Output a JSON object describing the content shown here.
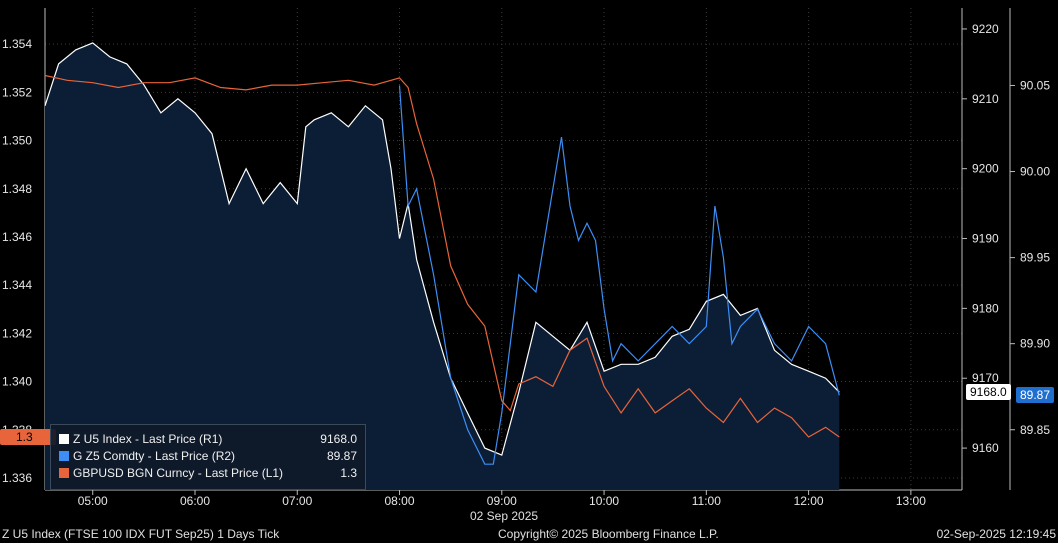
{
  "chart_data": {
    "type": "line",
    "x_tick_labels": [
      "05:00",
      "06:00",
      "07:00",
      "08:00",
      "09:00",
      "10:00",
      "11:00",
      "12:00",
      "13:00"
    ],
    "x_range": [
      "04:32",
      "13:30"
    ],
    "date_label": "02 Sep 2025",
    "left_axis": {
      "ticks": [
        "1.354",
        "1.352",
        "1.350",
        "1.348",
        "1.346",
        "1.344",
        "1.342",
        "1.340",
        "1.338",
        "1.336"
      ],
      "range": [
        1.3355,
        1.3555
      ]
    },
    "right_axis_1": {
      "ticks": [
        "9220",
        "9210",
        "9200",
        "9190",
        "9180",
        "9170",
        "9160"
      ],
      "range": [
        9154,
        9223
      ]
    },
    "right_axis_2": {
      "ticks": [
        "90.05",
        "90.00",
        "89.95",
        "89.90",
        "89.85"
      ],
      "range": [
        89.815,
        90.095
      ]
    },
    "grid": "dotted",
    "legend_position": "bottom-left",
    "series": [
      {
        "name": "Z U5 Index - Last Price (R1)",
        "axis": "R1",
        "color": "#ffffff",
        "fill": "#0b1e36",
        "last_value": "9168.0",
        "x": [
          "04:32",
          "04:40",
          "04:50",
          "05:00",
          "05:10",
          "05:20",
          "05:30",
          "05:40",
          "05:50",
          "06:00",
          "06:10",
          "06:20",
          "06:30",
          "06:40",
          "06:50",
          "07:00",
          "07:05",
          "07:10",
          "07:20",
          "07:30",
          "07:40",
          "07:50",
          "07:55",
          "08:00",
          "08:05",
          "08:10",
          "08:20",
          "08:30",
          "08:40",
          "08:50",
          "09:00",
          "09:10",
          "09:20",
          "09:30",
          "09:40",
          "09:50",
          "10:00",
          "10:10",
          "10:20",
          "10:30",
          "10:40",
          "10:50",
          "11:00",
          "11:10",
          "11:20",
          "11:30",
          "11:40",
          "11:50",
          "12:00",
          "12:10",
          "12:18"
        ],
        "values": [
          9209,
          9215,
          9217,
          9218,
          9216,
          9215,
          9212,
          9208,
          9210,
          9208,
          9205,
          9195,
          9200,
          9195,
          9198,
          9195,
          9206,
          9207,
          9208,
          9206,
          9209,
          9207,
          9200,
          9190,
          9195,
          9187,
          9178,
          9170,
          9165,
          9160,
          9159,
          9168,
          9178,
          9176,
          9174,
          9178,
          9171,
          9172,
          9172,
          9173,
          9176,
          9177,
          9181,
          9182,
          9179,
          9180,
          9174,
          9172,
          9171,
          9170,
          9168
        ]
      },
      {
        "name": "G Z5 Comdty - Last Price (R2)",
        "axis": "R2",
        "color": "#3d8ef5",
        "last_value": "89.87",
        "x": [
          "08:00",
          "08:05",
          "08:10",
          "08:20",
          "08:30",
          "08:40",
          "08:50",
          "08:55",
          "09:00",
          "09:10",
          "09:20",
          "09:30",
          "09:35",
          "09:40",
          "09:45",
          "09:50",
          "09:55",
          "10:00",
          "10:05",
          "10:10",
          "10:20",
          "10:30",
          "10:40",
          "10:50",
          "11:00",
          "11:05",
          "11:10",
          "11:15",
          "11:20",
          "11:30",
          "11:40",
          "11:50",
          "12:00",
          "12:10",
          "12:18"
        ],
        "values": [
          90.05,
          89.98,
          89.99,
          89.94,
          89.88,
          89.85,
          89.83,
          89.83,
          89.86,
          89.94,
          89.93,
          89.99,
          90.02,
          89.98,
          89.96,
          89.97,
          89.96,
          89.92,
          89.89,
          89.9,
          89.89,
          89.9,
          89.91,
          89.9,
          89.91,
          89.98,
          89.95,
          89.9,
          89.91,
          89.92,
          89.9,
          89.89,
          89.91,
          89.9,
          89.87
        ]
      },
      {
        "name": "GBPUSD BGN Curncy - Last Price (L1)",
        "axis": "L1",
        "color": "#e8643a",
        "last_value": "1.3",
        "x": [
          "04:32",
          "04:45",
          "05:00",
          "05:15",
          "05:30",
          "05:45",
          "06:00",
          "06:15",
          "06:30",
          "06:45",
          "07:00",
          "07:15",
          "07:30",
          "07:45",
          "08:00",
          "08:05",
          "08:10",
          "08:20",
          "08:30",
          "08:40",
          "08:50",
          "09:00",
          "09:05",
          "09:10",
          "09:20",
          "09:30",
          "09:40",
          "09:50",
          "10:00",
          "10:10",
          "10:20",
          "10:30",
          "10:40",
          "10:50",
          "11:00",
          "11:10",
          "11:20",
          "11:30",
          "11:40",
          "11:50",
          "12:00",
          "12:10",
          "12:18"
        ],
        "values": [
          1.3527,
          1.3525,
          1.3524,
          1.3522,
          1.3524,
          1.3524,
          1.3526,
          1.3522,
          1.3521,
          1.3523,
          1.3523,
          1.3524,
          1.3525,
          1.3523,
          1.3526,
          1.3522,
          1.3507,
          1.3484,
          1.3448,
          1.3432,
          1.3423,
          1.3392,
          1.3388,
          1.3399,
          1.3402,
          1.3398,
          1.3413,
          1.3418,
          1.3398,
          1.3387,
          1.3397,
          1.3387,
          1.3392,
          1.3397,
          1.3389,
          1.3383,
          1.3393,
          1.3383,
          1.3389,
          1.3385,
          1.3377,
          1.3381,
          1.3377
        ]
      }
    ]
  },
  "tags": {
    "left": {
      "text": "1.3",
      "color": "#e8643a"
    },
    "right_1": {
      "text": "9168.0",
      "color": "#ffffff"
    },
    "right_2": {
      "text": "89.87",
      "color": "#1f6fd0"
    }
  },
  "legend": {
    "items": [
      {
        "label": "Z U5 Index - Last Price (R1)",
        "value": "9168.0",
        "color": "#ffffff"
      },
      {
        "label": "G Z5 Comdty - Last Price (R2)",
        "value": "89.87",
        "color": "#3d8ef5"
      },
      {
        "label": "GBPUSD BGN Curncy - Last Price (L1)",
        "value": "1.3",
        "color": "#e8643a"
      }
    ]
  },
  "footer": {
    "left": "Z U5 Index (FTSE 100 IDX FUT  Sep25) 1 Days  Tick",
    "center": "Copyright© 2025 Bloomberg Finance L.P.",
    "right": "02-Sep-2025 12:19:45"
  }
}
